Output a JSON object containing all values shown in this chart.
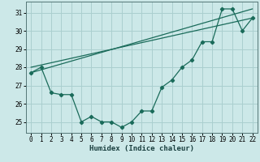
{
  "title": "",
  "xlabel": "Humidex (Indice chaleur)",
  "ylabel": "",
  "background_color": "#cce8e8",
  "grid_color": "#aacfcf",
  "line_color": "#1a6b5a",
  "x_data": [
    0,
    1,
    2,
    3,
    4,
    5,
    6,
    7,
    8,
    9,
    10,
    11,
    12,
    13,
    14,
    15,
    16,
    17,
    18,
    19,
    20,
    21,
    22
  ],
  "y_data": [
    27.7,
    28.0,
    26.6,
    26.5,
    26.5,
    25.0,
    25.3,
    25.0,
    25.0,
    24.7,
    25.0,
    25.6,
    25.6,
    26.9,
    27.3,
    28.0,
    28.4,
    29.4,
    29.4,
    31.2,
    31.2,
    30.0,
    30.7
  ],
  "trend1_x": [
    0,
    22
  ],
  "trend1_y": [
    27.7,
    31.2
  ],
  "trend2_x": [
    0,
    22
  ],
  "trend2_y": [
    28.0,
    30.7
  ],
  "xlim": [
    -0.5,
    22.5
  ],
  "ylim": [
    24.4,
    31.6
  ],
  "yticks": [
    25,
    26,
    27,
    28,
    29,
    30,
    31
  ],
  "xticks": [
    0,
    1,
    2,
    3,
    4,
    5,
    6,
    7,
    8,
    9,
    10,
    11,
    12,
    13,
    14,
    15,
    16,
    17,
    18,
    19,
    20,
    21,
    22
  ],
  "tick_fontsize": 5.5,
  "label_fontsize": 6.5
}
